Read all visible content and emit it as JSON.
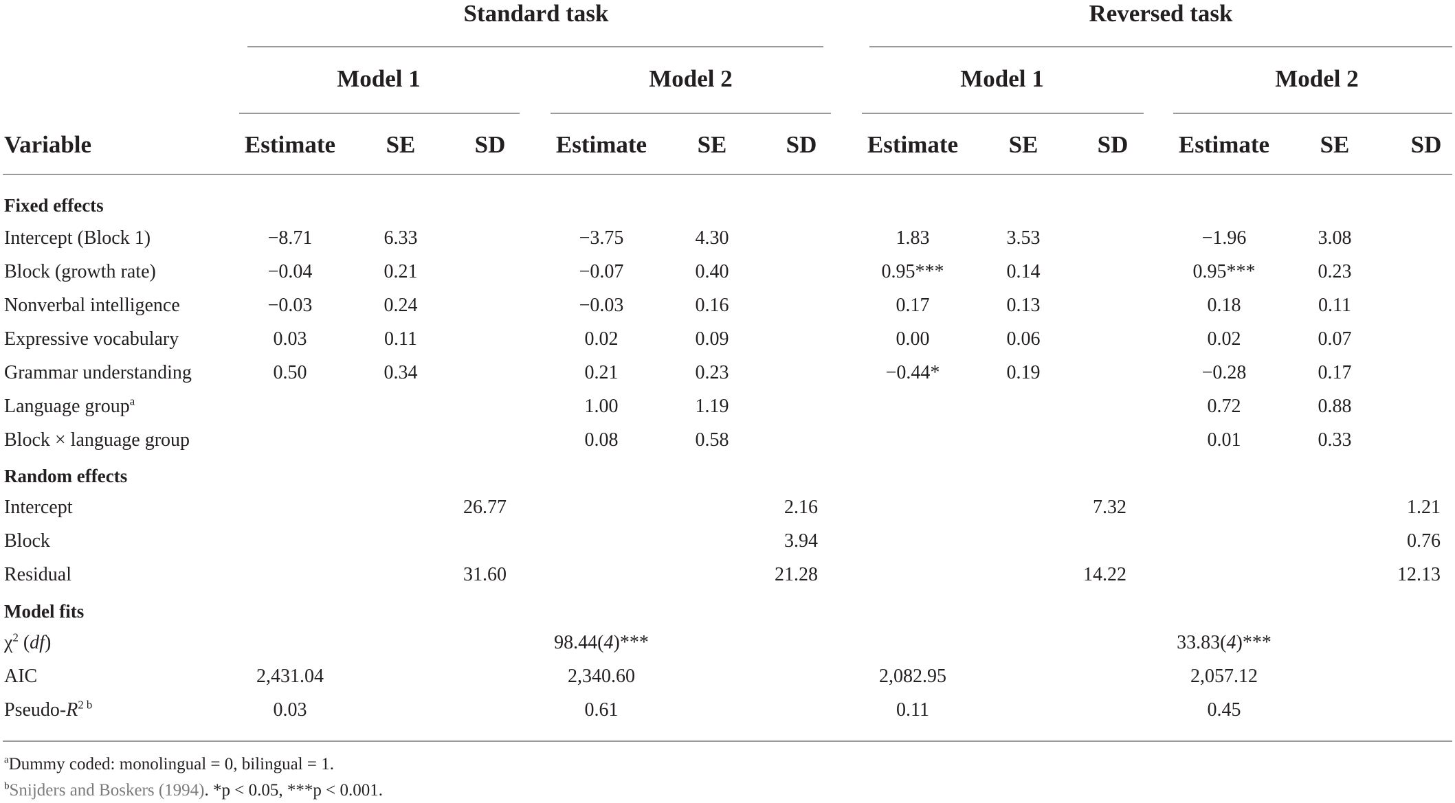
{
  "table": {
    "groups": [
      "Standard task",
      "Reversed task"
    ],
    "models": [
      "Model 1",
      "Model 2",
      "Model 1",
      "Model 2"
    ],
    "col_headers": {
      "variable": "Variable",
      "estimate": "Estimate",
      "se": "SE",
      "sd": "SD"
    },
    "sections": {
      "fixed": "Fixed effects",
      "random": "Random effects",
      "fits": "Model fits"
    },
    "rows": [
      {
        "label": "Intercept (Block 1)",
        "cells": [
          "−8.71",
          "6.33",
          "",
          "−3.75",
          "4.30",
          "",
          "1.83",
          "3.53",
          "",
          "−1.96",
          "3.08",
          ""
        ]
      },
      {
        "label": "Block (growth rate)",
        "cells": [
          "−0.04",
          "0.21",
          "",
          "−0.07",
          "0.40",
          "",
          "0.95***",
          "0.14",
          "",
          "0.95***",
          "0.23",
          ""
        ]
      },
      {
        "label": "Nonverbal intelligence",
        "cells": [
          "−0.03",
          "0.24",
          "",
          "−0.03",
          "0.16",
          "",
          "0.17",
          "0.13",
          "",
          "0.18",
          "0.11",
          ""
        ]
      },
      {
        "label": "Expressive vocabulary",
        "cells": [
          "0.03",
          "0.11",
          "",
          "0.02",
          "0.09",
          "",
          "0.00",
          "0.06",
          "",
          "0.02",
          "0.07",
          ""
        ]
      },
      {
        "label": "Grammar understanding",
        "cells": [
          "0.50",
          "0.34",
          "",
          "0.21",
          "0.23",
          "",
          "−0.44*",
          "0.19",
          "",
          "−0.28",
          "0.17",
          ""
        ]
      },
      {
        "label": "Language group",
        "sup": "a",
        "cells": [
          "",
          "",
          "",
          "1.00",
          "1.19",
          "",
          "",
          "",
          "",
          "0.72",
          "0.88",
          ""
        ]
      },
      {
        "label": "Block × language group",
        "cells": [
          "",
          "",
          "",
          "0.08",
          "0.58",
          "",
          "",
          "",
          "",
          "0.01",
          "0.33",
          ""
        ]
      },
      {
        "label": "Intercept",
        "cells": [
          "",
          "",
          "26.77",
          "",
          "",
          "2.16",
          "",
          "",
          "7.32",
          "",
          "",
          "1.21"
        ]
      },
      {
        "label": "Block",
        "cells": [
          "",
          "",
          "",
          "",
          "",
          "3.94",
          "",
          "",
          "",
          "",
          "",
          "0.76"
        ]
      },
      {
        "label": "Residual",
        "cells": [
          "",
          "",
          "31.60",
          "",
          "",
          "21.28",
          "",
          "",
          "14.22",
          "",
          "",
          "12.13"
        ]
      },
      {
        "label": "χ",
        "label_sup": "2",
        "label_df": "df",
        "cells": [
          "",
          "",
          "",
          "98.44(4)***",
          "",
          "",
          "",
          "",
          "",
          "33.83(4)***",
          "",
          ""
        ]
      },
      {
        "label": "AIC",
        "cells": [
          "2,431.04",
          "",
          "",
          "2,340.60",
          "",
          "",
          "2,082.95",
          "",
          "",
          "2,057.12",
          "",
          ""
        ]
      },
      {
        "label": "Pseudo-",
        "label_italic": "R",
        "label_sup": "2 b",
        "cells": [
          "0.03",
          "",
          "",
          "0.61",
          "",
          "",
          "0.11",
          "",
          "",
          "0.45",
          "",
          ""
        ]
      }
    ]
  },
  "footnotes": {
    "a_mark": "a",
    "a_text": "Dummy coded: monolingual = 0, bilingual = 1.",
    "b_mark": "b",
    "b_cite": "Snijders and Boskers (1994)",
    "b_rest": ". *p < 0.05, ***p < 0.001."
  }
}
